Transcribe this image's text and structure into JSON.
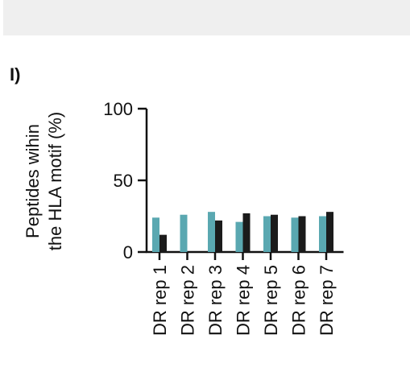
{
  "panel": {
    "letter": "I)"
  },
  "chart_data": {
    "type": "bar",
    "categories": [
      "DR rep 1",
      "DR rep 2",
      "DR rep 3",
      "DR rep 4",
      "DR rep 5",
      "DR rep 6",
      "DR rep 7"
    ],
    "series": [
      {
        "color": "#5aa8b1",
        "values": [
          24,
          26,
          28,
          21,
          25,
          24,
          25
        ]
      },
      {
        "color": "#1b1b1b",
        "values": [
          12,
          0,
          22,
          27,
          26,
          25,
          28
        ]
      }
    ],
    "ylabel_lines": [
      "Peptides wihin",
      "the HLA motif (%)"
    ],
    "yticks": [
      "0",
      "50",
      "100"
    ],
    "ylim": [
      0,
      100
    ],
    "grid": false,
    "legend": "none"
  }
}
